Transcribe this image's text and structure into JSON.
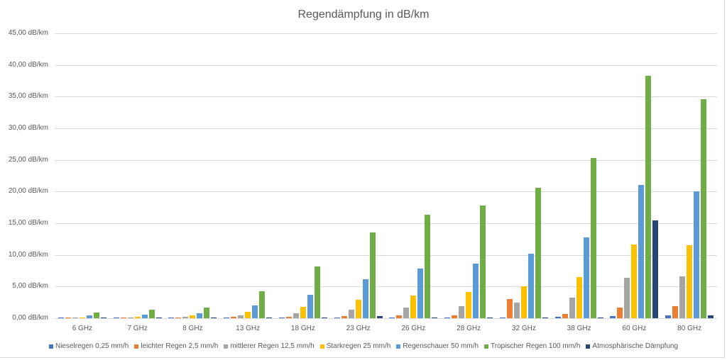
{
  "chart_data": {
    "type": "bar",
    "title": "Regendämpfung in dB/km",
    "xlabel": "",
    "ylabel": "",
    "ylim": [
      0,
      45
    ],
    "yticks": [
      "0,00 dB/km",
      "5,00 dB/km",
      "10,00 dB/km",
      "15,00 dB/km",
      "20,00 dB/km",
      "25,00 dB/km",
      "30,00 dB/km",
      "35,00 dB/km",
      "40,00 dB/km",
      "45,00 dB/km"
    ],
    "grid": true,
    "legend_position": "bottom",
    "categories": [
      "6 GHz",
      "7 GHz",
      "8 GHz",
      "13 GHz",
      "18 GHz",
      "23 GHz",
      "26 GHz",
      "28 GHz",
      "32 GHz",
      "38 GHz",
      "60 GHz",
      "80 GHz"
    ],
    "series": [
      {
        "name": "Nieselregen 0,25 mm/h",
        "color": "#4472c4",
        "values": [
          0.0,
          0.0,
          0.0,
          0.02,
          0.05,
          0.08,
          0.1,
          0.12,
          0.15,
          0.2,
          0.35,
          0.45
        ]
      },
      {
        "name": "leichter Regen 2,5 mm/h",
        "color": "#ed7d31",
        "values": [
          0.05,
          0.08,
          0.1,
          0.2,
          0.25,
          0.35,
          0.45,
          0.5,
          3.0,
          0.7,
          1.7,
          1.9
        ]
      },
      {
        "name": "mittlerer Regen 12,5 mm/h",
        "color": "#a5a5a5",
        "values": [
          0.1,
          0.15,
          0.2,
          0.5,
          0.8,
          1.4,
          1.7,
          1.9,
          2.5,
          3.3,
          6.4,
          6.6
        ]
      },
      {
        "name": "Starkregen 25 mm/h",
        "color": "#ffc000",
        "values": [
          0.15,
          0.25,
          0.4,
          1.0,
          1.8,
          2.9,
          3.6,
          4.1,
          5.0,
          6.5,
          11.6,
          11.5
        ]
      },
      {
        "name": "Regenschauer 50 mm/h",
        "color": "#5b9bd5",
        "values": [
          0.45,
          0.6,
          0.8,
          2.0,
          3.7,
          6.2,
          7.8,
          8.6,
          10.2,
          12.8,
          21.0,
          20.0
        ]
      },
      {
        "name": "Tropischer Regen 100 mm/h",
        "color": "#70ad47",
        "values": [
          0.9,
          1.3,
          1.7,
          4.3,
          8.2,
          13.5,
          16.4,
          17.8,
          20.6,
          25.3,
          38.3,
          34.6
        ]
      },
      {
        "name": "Atmosphärische Dämpfung",
        "color": "#264478",
        "values": [
          0.15,
          0.15,
          0.15,
          0.15,
          0.15,
          0.3,
          0.15,
          0.15,
          0.15,
          0.15,
          15.5,
          0.4
        ]
      }
    ]
  }
}
